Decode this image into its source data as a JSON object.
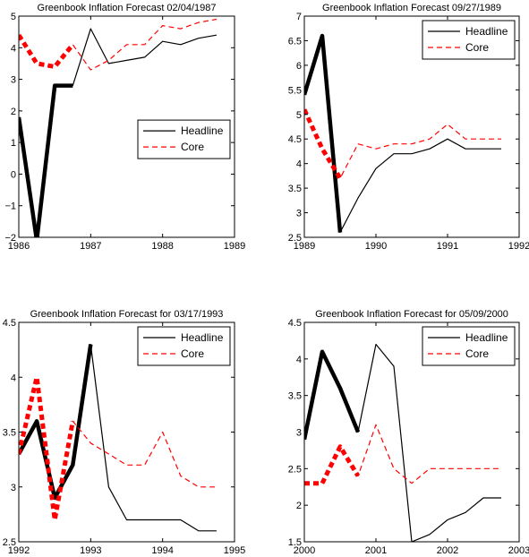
{
  "chart_data": [
    {
      "type": "line",
      "title": "Greenbook Inflation Forecast 02/04/1987",
      "xlim": [
        1986,
        1989
      ],
      "ylim": [
        -2,
        5
      ],
      "xticks": [
        1986,
        1987,
        1988,
        1989
      ],
      "xtick_labels": [
        "1986",
        "1987",
        "1988",
        "1989"
      ],
      "yticks": [
        -2,
        -1,
        0,
        1,
        2,
        3,
        4,
        5
      ],
      "ytick_labels": [
        "−2",
        "−1",
        "0",
        "1",
        "2",
        "3",
        "4",
        "5"
      ],
      "legend": "right",
      "grid": false,
      "series": [
        {
          "name": "Headline",
          "color": "#000000",
          "dash": "solid",
          "x": [
            1986.0,
            1986.25,
            1986.5,
            1986.75,
            1987.0,
            1987.25,
            1987.5,
            1987.75,
            1988.0,
            1988.25,
            1988.5,
            1988.75
          ],
          "y": [
            1.8,
            -2.1,
            2.8,
            2.8,
            4.6,
            3.5,
            3.6,
            3.7,
            4.2,
            4.1,
            4.3,
            4.4
          ],
          "thick_until": 1986.75
        },
        {
          "name": "Core",
          "color": "#ff0000",
          "dash": "dashed",
          "x": [
            1986.0,
            1986.25,
            1986.5,
            1986.75,
            1987.0,
            1987.25,
            1987.5,
            1987.75,
            1988.0,
            1988.25,
            1988.5,
            1988.75
          ],
          "y": [
            4.4,
            3.5,
            3.4,
            4.1,
            3.3,
            3.6,
            4.1,
            4.1,
            4.7,
            4.6,
            4.8,
            4.9
          ],
          "thick_until": 1986.75
        }
      ]
    },
    {
      "type": "line",
      "title": "Greenbook Inflation Forecast 09/27/1989",
      "xlim": [
        1989,
        1992
      ],
      "ylim": [
        2.5,
        7
      ],
      "xticks": [
        1989,
        1990,
        1991,
        1992
      ],
      "xtick_labels": [
        "1989",
        "1990",
        "1991",
        "1992"
      ],
      "yticks": [
        2.5,
        3,
        3.5,
        4,
        4.5,
        5,
        5.5,
        6,
        6.5,
        7
      ],
      "ytick_labels": [
        "2.5",
        "3",
        "3.5",
        "4",
        "4.5",
        "5",
        "5.5",
        "6",
        "6.5",
        "7"
      ],
      "legend": "top-right",
      "grid": false,
      "series": [
        {
          "name": "Headline",
          "color": "#000000",
          "dash": "solid",
          "x": [
            1989.0,
            1989.25,
            1989.5,
            1989.75,
            1990.0,
            1990.25,
            1990.5,
            1990.75,
            1991.0,
            1991.25,
            1991.5,
            1991.75
          ],
          "y": [
            5.4,
            6.6,
            2.6,
            3.3,
            3.9,
            4.2,
            4.2,
            4.3,
            4.5,
            4.3,
            4.3,
            4.3
          ],
          "thick_until": 1989.5
        },
        {
          "name": "Core",
          "color": "#ff0000",
          "dash": "dashed",
          "x": [
            1989.0,
            1989.25,
            1989.5,
            1989.75,
            1990.0,
            1990.25,
            1990.5,
            1990.75,
            1991.0,
            1991.25,
            1991.5,
            1991.75
          ],
          "y": [
            5.1,
            4.3,
            3.7,
            4.4,
            4.3,
            4.4,
            4.4,
            4.5,
            4.8,
            4.5,
            4.5,
            4.5
          ],
          "thick_until": 1989.5
        }
      ]
    },
    {
      "type": "line",
      "title": "Greenbook Inflation Forecast for 03/17/1993",
      "xlim": [
        1992,
        1995
      ],
      "ylim": [
        2.5,
        4.5
      ],
      "xticks": [
        1992,
        1993,
        1994,
        1995
      ],
      "xtick_labels": [
        "1992",
        "1993",
        "1994",
        "1995"
      ],
      "yticks": [
        2.5,
        3,
        3.5,
        4,
        4.5
      ],
      "ytick_labels": [
        "2.5",
        "3",
        "3.5",
        "4",
        "4.5"
      ],
      "legend": "top-right",
      "grid": false,
      "series": [
        {
          "name": "Headline",
          "color": "#000000",
          "dash": "solid",
          "x": [
            1992.0,
            1992.25,
            1992.5,
            1992.75,
            1993.0,
            1993.25,
            1993.5,
            1993.75,
            1994.0,
            1994.25,
            1994.5,
            1994.75
          ],
          "y": [
            3.3,
            3.6,
            2.9,
            3.2,
            4.3,
            3.0,
            2.7,
            2.7,
            2.7,
            2.7,
            2.6,
            2.6
          ],
          "thick_until": 1993.0
        },
        {
          "name": "Core",
          "color": "#ff0000",
          "dash": "dashed",
          "x": [
            1992.0,
            1992.25,
            1992.5,
            1992.75,
            1993.0,
            1993.25,
            1993.5,
            1993.75,
            1994.0,
            1994.25,
            1994.5,
            1994.75
          ],
          "y": [
            3.3,
            4.0,
            2.7,
            3.6,
            3.4,
            3.3,
            3.2,
            3.2,
            3.5,
            3.1,
            3.0,
            3.0
          ],
          "thick_until": 1992.75
        }
      ]
    },
    {
      "type": "line",
      "title": "Greenbook Inflation Forecast for 05/09/2000",
      "xlim": [
        2000,
        2003
      ],
      "ylim": [
        1.5,
        4.5
      ],
      "xticks": [
        2000,
        2001,
        2002,
        2003
      ],
      "xtick_labels": [
        "2000",
        "2001",
        "2002",
        "2003"
      ],
      "yticks": [
        1.5,
        2,
        2.5,
        3,
        3.5,
        4,
        4.5
      ],
      "ytick_labels": [
        "1.5",
        "2",
        "2.5",
        "3",
        "3.5",
        "4",
        "4.5"
      ],
      "legend": "top-right",
      "grid": false,
      "series": [
        {
          "name": "Headline",
          "color": "#000000",
          "dash": "solid",
          "x": [
            2000.0,
            2000.25,
            2000.5,
            2000.75,
            2001.0,
            2001.25,
            2001.5,
            2001.75,
            2002.0,
            2002.25,
            2002.5,
            2002.75
          ],
          "y": [
            2.9,
            4.1,
            3.6,
            3.0,
            4.2,
            3.9,
            1.5,
            1.6,
            1.8,
            1.9,
            2.1,
            2.1
          ],
          "thick_until": 2000.75
        },
        {
          "name": "Core",
          "color": "#ff0000",
          "dash": "dashed",
          "x": [
            2000.0,
            2000.25,
            2000.5,
            2000.75,
            2001.0,
            2001.25,
            2001.5,
            2001.75,
            2002.0,
            2002.25,
            2002.5,
            2002.75
          ],
          "y": [
            2.3,
            2.3,
            2.8,
            2.4,
            3.1,
            2.5,
            2.3,
            2.5,
            2.5,
            2.5,
            2.5,
            2.5
          ],
          "thick_until": 2000.75
        }
      ]
    }
  ]
}
